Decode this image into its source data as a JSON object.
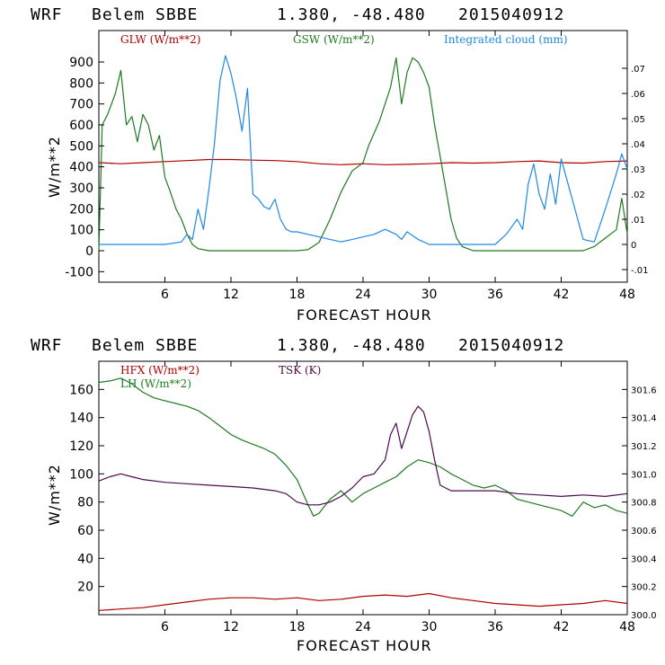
{
  "header": {
    "model": "WRF",
    "station": "Belem SBBE",
    "coords": "1.380, -48.480",
    "init": "2015040912"
  },
  "colors": {
    "red": "#b00000",
    "green": "#1f7a1f",
    "blue": "#1e88e5",
    "purple": "#4b0a4b"
  },
  "chart_data": [
    {
      "type": "line",
      "xlabel": "FORECAST HOUR",
      "ylabel": "W/m**2",
      "xlim": [
        0,
        48
      ],
      "ylim": [
        -150,
        1050
      ],
      "y2lim": [
        -0.015,
        0.085
      ],
      "xticks": [
        6,
        12,
        18,
        24,
        30,
        36,
        42,
        48
      ],
      "yticks": [
        -100,
        0,
        100,
        200,
        300,
        400,
        500,
        600,
        700,
        800,
        900
      ],
      "ytick_labels": [
        "-100",
        "0",
        "100",
        "200",
        "300",
        "400",
        "500",
        "600",
        "700",
        "800",
        "900"
      ],
      "y2ticks": [
        -0.01,
        0,
        0.01,
        0.02,
        0.03,
        0.04,
        0.05,
        0.06,
        0.07
      ],
      "y2tick_labels": [
        "-.01",
        "0",
        ".01",
        ".02",
        ".03",
        ".04",
        ".05",
        ".06",
        ".07"
      ],
      "series": [
        {
          "name": "GLW (W/m**2)",
          "color": "#b00000",
          "axis": "left",
          "x": [
            0,
            2,
            4,
            6,
            8,
            10,
            12,
            14,
            16,
            18,
            20,
            22,
            24,
            26,
            28,
            30,
            32,
            34,
            36,
            38,
            40,
            42,
            44,
            46,
            48
          ],
          "y": [
            420,
            415,
            420,
            425,
            430,
            435,
            435,
            432,
            430,
            425,
            415,
            410,
            415,
            410,
            412,
            415,
            420,
            418,
            420,
            425,
            428,
            420,
            418,
            425,
            428
          ]
        },
        {
          "name": "GSW (W/m**2)",
          "color": "#1f7a1f",
          "axis": "left",
          "x": [
            0,
            0.3,
            0.8,
            1.5,
            2,
            2.5,
            3,
            3.5,
            4,
            4.5,
            5,
            5.5,
            6,
            6.5,
            7,
            7.5,
            8,
            8.5,
            9,
            10,
            18,
            19,
            20,
            21,
            22,
            23,
            24,
            24.5,
            25,
            25.5,
            26,
            26.5,
            27,
            27.5,
            28,
            28.5,
            29,
            29.5,
            30,
            30.5,
            31,
            31.5,
            32,
            32.5,
            33,
            34,
            44,
            45,
            46,
            47,
            47.5,
            48
          ],
          "y": [
            0,
            600,
            650,
            750,
            860,
            600,
            640,
            520,
            650,
            600,
            480,
            550,
            350,
            280,
            200,
            150,
            80,
            30,
            10,
            0,
            0,
            5,
            40,
            150,
            280,
            380,
            420,
            500,
            560,
            620,
            700,
            780,
            920,
            700,
            850,
            920,
            900,
            850,
            780,
            600,
            450,
            300,
            150,
            60,
            20,
            0,
            0,
            20,
            60,
            100,
            250,
            80
          ]
        },
        {
          "name": "Integrated cloud (mm)",
          "color": "#1e88e5",
          "axis": "right",
          "x": [
            0,
            6,
            7.5,
            8,
            8.5,
            9,
            9.5,
            10,
            10.5,
            11,
            11.5,
            12,
            12.5,
            13,
            13.5,
            14,
            14.5,
            15,
            15.5,
            16,
            16.5,
            17,
            17.5,
            18,
            19,
            20,
            21,
            22,
            23,
            24,
            25,
            26,
            27,
            27.5,
            28,
            29,
            30,
            31,
            32,
            33,
            34,
            35,
            36,
            37,
            38,
            38.5,
            39,
            39.5,
            40,
            40.5,
            41,
            41.5,
            42,
            42.5,
            43,
            44,
            45,
            46,
            47,
            47.5,
            48
          ],
          "y": [
            0,
            0,
            0.001,
            0.004,
            0.002,
            0.014,
            0.006,
            0.022,
            0.04,
            0.065,
            0.075,
            0.068,
            0.058,
            0.045,
            0.062,
            0.02,
            0.018,
            0.015,
            0.014,
            0.018,
            0.01,
            0.006,
            0.005,
            0.005,
            0.004,
            0.003,
            0.002,
            0.001,
            0.002,
            0.003,
            0.004,
            0.006,
            0.004,
            0.002,
            0.005,
            0.002,
            0.0,
            0.0,
            0.0,
            0.0,
            0.0,
            0.0,
            0.0,
            0.004,
            0.01,
            0.006,
            0.024,
            0.032,
            0.02,
            0.014,
            0.028,
            0.016,
            0.034,
            0.026,
            0.018,
            0.002,
            0.001,
            0.014,
            0.028,
            0.036,
            0.03
          ]
        }
      ]
    },
    {
      "type": "line",
      "xlabel": "FORECAST HOUR",
      "ylabel": "W/m**2",
      "xlim": [
        0,
        48
      ],
      "ylim": [
        0,
        180
      ],
      "y2lim": [
        300.0,
        301.8
      ],
      "xticks": [
        6,
        12,
        18,
        24,
        30,
        36,
        42,
        48
      ],
      "yticks": [
        20,
        40,
        60,
        80,
        100,
        120,
        140,
        160
      ],
      "ytick_labels": [
        "20",
        "40",
        "60",
        "80",
        "100",
        "120",
        "140",
        "160"
      ],
      "y2ticks": [
        300.0,
        300.2,
        300.4,
        300.6,
        300.8,
        301.0,
        301.2,
        301.4,
        301.6
      ],
      "y2tick_labels": [
        "300.0",
        "300.2",
        "300.4",
        "300.6",
        "300.8",
        "301.0",
        "301.2",
        "301.4",
        "301.6"
      ],
      "series": [
        {
          "name": "HFX (W/m**2)",
          "color": "#b00000",
          "axis": "left",
          "x": [
            0,
            2,
            4,
            6,
            8,
            10,
            12,
            14,
            16,
            18,
            20,
            22,
            24,
            26,
            28,
            30,
            32,
            34,
            36,
            38,
            40,
            42,
            44,
            46,
            48
          ],
          "y": [
            3,
            4,
            5,
            7,
            9,
            11,
            12,
            12,
            11,
            12,
            10,
            11,
            13,
            14,
            13,
            15,
            12,
            10,
            8,
            7,
            6,
            7,
            8,
            10,
            8
          ]
        },
        {
          "name": "LH (W/m**2)",
          "color": "#1f7a1f",
          "axis": "left",
          "x": [
            0,
            1,
            2,
            3,
            4,
            5,
            6,
            7,
            8,
            9,
            10,
            11,
            12,
            13,
            14,
            15,
            16,
            17,
            18,
            19,
            19.5,
            20,
            21,
            22,
            23,
            24,
            25,
            26,
            27,
            28,
            29,
            30,
            31,
            32,
            33,
            34,
            35,
            36,
            37,
            38,
            39,
            40,
            41,
            42,
            43,
            44,
            45,
            46,
            47,
            48
          ],
          "y": [
            165,
            166,
            168,
            164,
            158,
            154,
            152,
            150,
            148,
            145,
            140,
            134,
            128,
            124,
            121,
            118,
            114,
            106,
            96,
            78,
            70,
            72,
            82,
            88,
            80,
            86,
            90,
            94,
            98,
            105,
            110,
            108,
            105,
            100,
            96,
            92,
            90,
            92,
            88,
            82,
            80,
            78,
            76,
            74,
            70,
            80,
            76,
            78,
            74,
            72
          ]
        },
        {
          "name": "TSK (K)",
          "color": "#4b0a4b",
          "axis": "right",
          "x": [
            0,
            1,
            2,
            3,
            4,
            6,
            8,
            10,
            12,
            14,
            16,
            17,
            18,
            19,
            20,
            21,
            22,
            23,
            24,
            25,
            26,
            26.5,
            27,
            27.5,
            28,
            28.5,
            29,
            29.5,
            30,
            30.5,
            31,
            32,
            34,
            36,
            38,
            40,
            42,
            44,
            46,
            48
          ],
          "y": [
            300.95,
            300.98,
            301.0,
            300.98,
            300.96,
            300.94,
            300.93,
            300.92,
            300.91,
            300.9,
            300.88,
            300.86,
            300.8,
            300.78,
            300.78,
            300.8,
            300.84,
            300.9,
            300.98,
            301.0,
            301.1,
            301.28,
            301.36,
            301.18,
            301.3,
            301.42,
            301.48,
            301.44,
            301.3,
            301.1,
            300.92,
            300.88,
            300.88,
            300.88,
            300.86,
            300.85,
            300.84,
            300.85,
            300.84,
            300.86
          ]
        }
      ]
    }
  ]
}
